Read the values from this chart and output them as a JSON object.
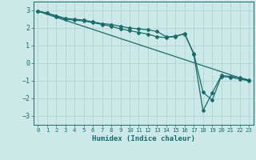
{
  "xlabel": "Humidex (Indice chaleur)",
  "bg_color": "#cce8e8",
  "grid_color": "#aacfcf",
  "line_color": "#1a6b6b",
  "xlim": [
    -0.5,
    23.5
  ],
  "ylim": [
    -3.5,
    3.5
  ],
  "yticks": [
    -3,
    -2,
    -1,
    0,
    1,
    2,
    3
  ],
  "xticks": [
    0,
    1,
    2,
    3,
    4,
    5,
    6,
    7,
    8,
    9,
    10,
    11,
    12,
    13,
    14,
    15,
    16,
    17,
    18,
    19,
    20,
    21,
    22,
    23
  ],
  "series1_x": [
    0,
    1,
    2,
    3,
    4,
    5,
    6,
    7,
    8,
    9,
    10,
    11,
    12,
    13,
    14,
    15,
    16,
    17,
    18,
    19,
    20,
    21,
    22,
    23
  ],
  "series1_y": [
    2.95,
    2.85,
    2.7,
    2.55,
    2.5,
    2.45,
    2.35,
    2.25,
    2.2,
    2.1,
    2.0,
    1.95,
    1.9,
    1.8,
    1.5,
    1.5,
    1.7,
    0.5,
    -2.7,
    -1.7,
    -0.7,
    -0.75,
    -0.82,
    -0.95
  ],
  "series2_x": [
    0,
    1,
    2,
    3,
    4,
    5,
    6,
    7,
    8,
    9,
    10,
    11,
    12,
    13,
    14,
    15,
    16,
    17,
    18,
    19,
    20,
    21,
    22,
    23
  ],
  "series2_y": [
    2.95,
    2.85,
    2.65,
    2.5,
    2.45,
    2.4,
    2.3,
    2.2,
    2.1,
    1.95,
    1.85,
    1.75,
    1.65,
    1.5,
    1.45,
    1.55,
    1.65,
    0.55,
    -1.65,
    -2.1,
    -0.75,
    -0.8,
    -0.9,
    -1.0
  ],
  "series3_x": [
    0,
    23
  ],
  "series3_y": [
    2.95,
    -1.0
  ]
}
